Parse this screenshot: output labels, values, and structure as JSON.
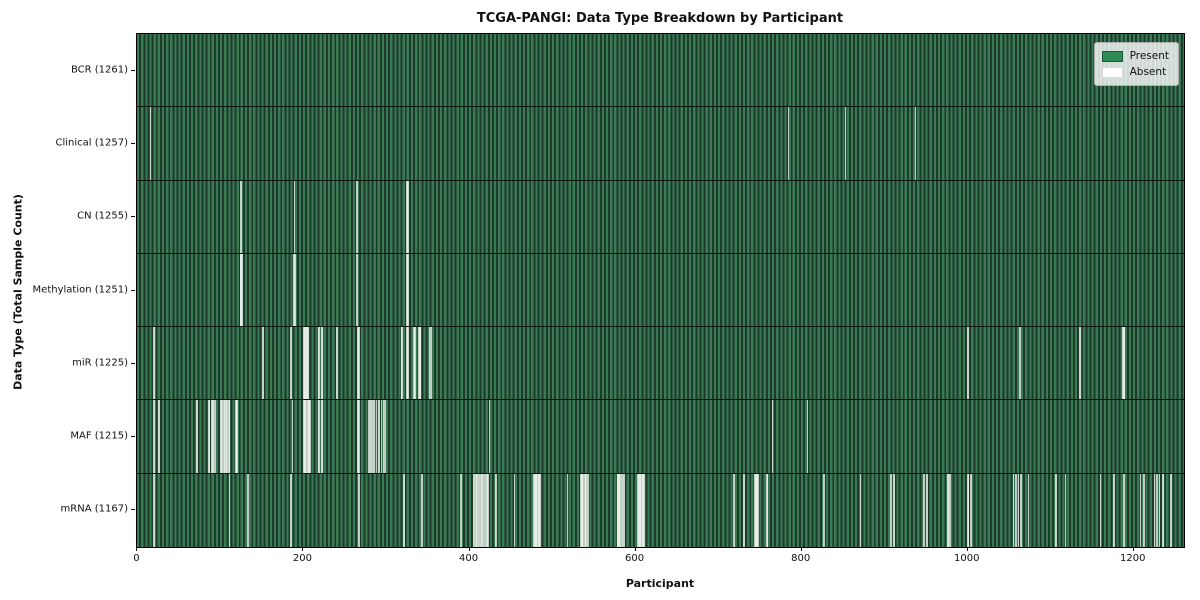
{
  "title": "TCGA-PANGI: Data Type Breakdown by Participant",
  "legend": {
    "present_label": "Present",
    "absent_label": "Absent"
  },
  "chart_data": {
    "type": "heatmap",
    "title": "TCGA-PANGI: Data Type Breakdown by Participant",
    "xlabel": "Participant",
    "ylabel": "Data Type (Total Sample Count)",
    "legend_entries": [
      "Present",
      "Absent"
    ],
    "legend_position": "upper right",
    "grid": false,
    "n_participants": 1261,
    "x_range": [
      0,
      1261
    ],
    "x_ticks": [
      0,
      200,
      400,
      600,
      800,
      1000,
      1200
    ],
    "colors": {
      "present": "#2e8b57",
      "present_stripe_light": "#3a7a55",
      "present_stripe_dark": "#1e3a2a",
      "absent": "#ffffff",
      "row_divider": "#0a150e",
      "plot_border": "#000000"
    },
    "rows": [
      {
        "label": "BCR (1261)",
        "data_type": "BCR",
        "total_samples": 1261,
        "absent_count": 0,
        "absent_participants": []
      },
      {
        "label": "Clinical (1257)",
        "data_type": "Clinical",
        "total_samples": 1257,
        "absent_count": 4,
        "absent_participants": [
          16,
          784,
          853,
          937
        ]
      },
      {
        "label": "CN (1255)",
        "data_type": "CN",
        "total_samples": 1255,
        "absent_count": 6,
        "absent_participants": [
          125,
          189,
          264,
          265,
          325,
          326
        ]
      },
      {
        "label": "Methylation (1251)",
        "data_type": "Methylation",
        "total_samples": 1251,
        "absent_count": 10,
        "absent_participants": [
          124,
          125,
          126,
          188,
          189,
          190,
          264,
          265,
          325,
          326
        ]
      },
      {
        "label": "miR (1225)",
        "data_type": "miR",
        "total_samples": 1225,
        "absent_count": 36,
        "absent_participants": [
          20,
          151,
          185,
          200,
          201,
          202,
          203,
          204,
          205,
          206,
          218,
          219,
          222,
          223,
          240,
          241,
          266,
          267,
          318,
          319,
          325,
          326,
          333,
          334,
          339,
          340,
          341,
          352,
          353,
          354,
          1000,
          1063,
          1135,
          1187,
          1188,
          1189
        ]
      },
      {
        "label": "MAF (1215)",
        "data_type": "MAF",
        "total_samples": 1215,
        "absent_count": 46,
        "absent_participants": [
          20,
          26,
          72,
          86,
          87,
          90,
          91,
          93,
          94,
          101,
          102,
          104,
          105,
          107,
          108,
          110,
          111,
          119,
          120,
          187,
          200,
          201,
          202,
          203,
          205,
          206,
          207,
          208,
          218,
          219,
          222,
          223,
          266,
          267,
          279,
          281,
          283,
          285,
          288,
          291,
          294,
          297,
          299,
          424,
          765,
          807
        ]
      },
      {
        "label": "mRNA (1167)",
        "data_type": "mRNA",
        "total_samples": 1167,
        "absent_count": 94,
        "absent_participants": [
          20,
          111,
          133,
          185,
          267,
          321,
          343,
          390,
          405,
          406,
          408,
          409,
          411,
          412,
          414,
          415,
          417,
          418,
          419,
          421,
          422,
          432,
          454,
          478,
          479,
          480,
          481,
          483,
          484,
          485,
          518,
          534,
          535,
          536,
          537,
          539,
          540,
          543,
          578,
          579,
          580,
          581,
          583,
          584,
          586,
          603,
          604,
          605,
          606,
          608,
          609,
          610,
          718,
          719,
          730,
          731,
          744,
          745,
          746,
          747,
          748,
          758,
          759,
          827,
          871,
          907,
          908,
          911,
          947,
          948,
          951,
          976,
          977,
          979,
          1000,
          1001,
          1004,
          1055,
          1058,
          1061,
          1064,
          1073,
          1106,
          1118,
          1160,
          1176,
          1188,
          1208,
          1212,
          1225,
          1228,
          1231,
          1235,
          1245
        ]
      }
    ]
  }
}
